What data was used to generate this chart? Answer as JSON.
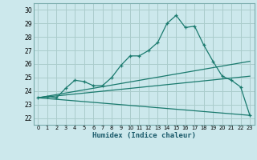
{
  "xlabel": "Humidex (Indice chaleur)",
  "ylabel": "",
  "bg_color": "#cce8ec",
  "grid_color": "#aacccc",
  "line_color": "#1a7a6e",
  "x_ticks": [
    0,
    1,
    2,
    3,
    4,
    5,
    6,
    7,
    8,
    9,
    10,
    11,
    12,
    13,
    14,
    15,
    16,
    17,
    18,
    19,
    20,
    21,
    22,
    23
  ],
  "y_ticks": [
    22,
    23,
    24,
    25,
    26,
    27,
    28,
    29,
    30
  ],
  "xlim": [
    -0.5,
    23.5
  ],
  "ylim": [
    21.5,
    30.5
  ],
  "series1": {
    "x": [
      0,
      1,
      2,
      3,
      4,
      5,
      6,
      7,
      8,
      9,
      10,
      11,
      12,
      13,
      14,
      15,
      16,
      17,
      18,
      19,
      20,
      21,
      22,
      23
    ],
    "y": [
      23.5,
      23.6,
      23.5,
      24.2,
      24.8,
      24.7,
      24.4,
      24.4,
      25.0,
      25.9,
      26.6,
      26.6,
      27.0,
      27.6,
      29.0,
      29.6,
      28.7,
      28.8,
      27.4,
      26.2,
      25.1,
      24.8,
      24.3,
      22.2
    ]
  },
  "series2": {
    "x": [
      0,
      23
    ],
    "y": [
      23.5,
      26.2
    ]
  },
  "series3": {
    "x": [
      0,
      23
    ],
    "y": [
      23.5,
      22.2
    ]
  },
  "series4": {
    "x": [
      0,
      23
    ],
    "y": [
      23.5,
      25.1
    ]
  }
}
